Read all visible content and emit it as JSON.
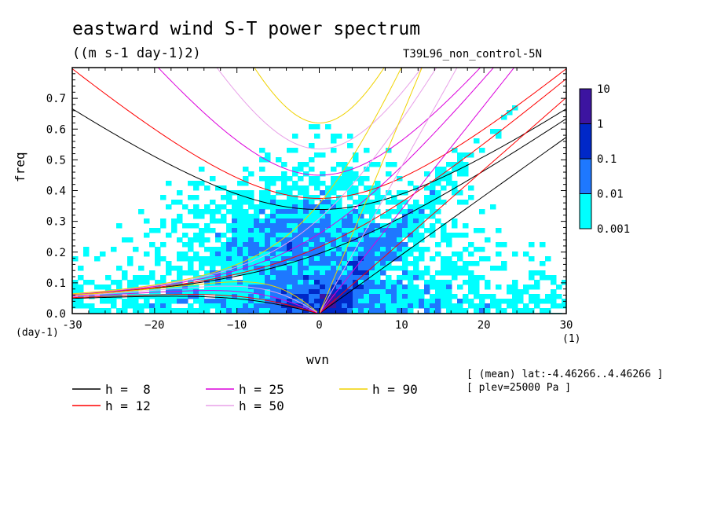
{
  "title": "eastward wind S-T power spectrum",
  "subtitle": "((m s-1 day-1)2)",
  "run_label": "T39L96_non_control-5N",
  "meta": [
    "[ (mean) lat:-4.46266..4.46266 ]",
    "[ plev=25000 Pa ]"
  ],
  "chart_data": {
    "type": "heatmap",
    "title": "eastward wind S-T power spectrum",
    "xlabel": "wvn",
    "ylabel": "freq",
    "x_unit": "(1)",
    "y_unit": "(day-1)",
    "xlim": [
      -30,
      30
    ],
    "ylim": [
      0,
      0.8
    ],
    "x_ticks": [
      -30,
      -20,
      -10,
      0,
      10,
      20,
      30
    ],
    "x_tick_labels": [
      "-30",
      "−20",
      "−10",
      "0",
      "10",
      "20",
      "30"
    ],
    "y_ticks": [
      0.0,
      0.1,
      0.2,
      0.3,
      0.4,
      0.5,
      0.6,
      0.7
    ],
    "y_tick_labels": [
      "0.0",
      "0.1",
      "0.2",
      "0.3",
      "0.4",
      "0.5",
      "0.6",
      "0.7"
    ],
    "colorbar": {
      "levels": [
        "0.001",
        "0.01",
        "0.1",
        "1",
        "10"
      ],
      "colors": [
        "#00ffff",
        "#1e78ff",
        "#0028c8",
        "#3c14a0"
      ],
      "below_color": "#ffffff"
    },
    "dispersion_curves": [
      {
        "name": "h =  8",
        "h": 8,
        "color": "#000000"
      },
      {
        "name": "h = 12",
        "h": 12,
        "color": "#ff0000"
      },
      {
        "name": "h = 25",
        "h": 25,
        "color": "#dc00dc"
      },
      {
        "name": "h = 50",
        "h": 50,
        "color": "#e8a0e8"
      },
      {
        "name": "h = 90",
        "h": 90,
        "color": "#f0d200"
      }
    ]
  },
  "legend": [
    {
      "label": "h =  8",
      "color": "#000000"
    },
    {
      "label": "h = 25",
      "color": "#dc00dc"
    },
    {
      "label": "h = 90",
      "color": "#f0d200"
    },
    {
      "label": "h = 12",
      "color": "#ff0000"
    },
    {
      "label": "h = 50",
      "color": "#e8a0e8"
    }
  ]
}
